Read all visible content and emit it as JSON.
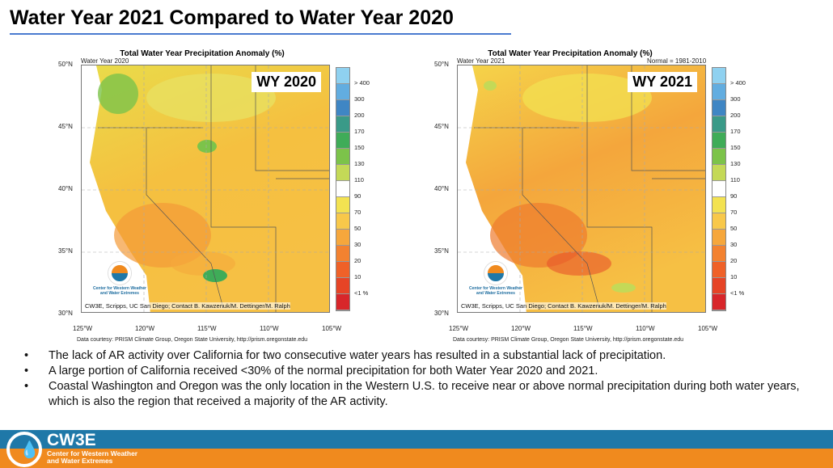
{
  "slide": {
    "title": "Water Year 2021 Compared to Water Year 2020"
  },
  "figure_title": "Total Water Year Precipitation Anomaly (%)",
  "lat_labels": [
    "50°N",
    "45°N",
    "40°N",
    "35°N",
    "30°N"
  ],
  "lon_labels": [
    "125°W",
    "120°W",
    "115°W",
    "110°W",
    "105°W"
  ],
  "legend": {
    "colors": [
      "#8fd1f0",
      "#62ade0",
      "#3f86c4",
      "#3a9a88",
      "#3fac58",
      "#7cc34a",
      "#c4d957",
      "#ffffff",
      "#f3e251",
      "#f8c84a",
      "#f6a73c",
      "#f38230",
      "#ef6128",
      "#e64426",
      "#d8262a"
    ],
    "labels": [
      "> 400",
      "300",
      "200",
      "170",
      "150",
      "130",
      "110",
      "90",
      "70",
      "50",
      "30",
      "20",
      "10",
      "<1 %"
    ]
  },
  "maps": [
    {
      "subtitle": "Water Year 2020",
      "normal": "",
      "badge": "WY 2020",
      "credit": "CW3E, Scripps, UC San Diego; Contact B. Kawzenuk/M. Dettinger/M. Ralph",
      "data_courtesy": "Data courtesy: PRISM Climate Group, Oregon State University, http://prism.oregonstate.edu"
    },
    {
      "subtitle": "Water Year 2021",
      "normal": "Normal = 1981-2010",
      "badge": "WY 2021",
      "credit": "CW3E, Scripps, UC San Diego; Contact B. Kawzenuk/M. Dettinger/M. Ralph",
      "data_courtesy": "Data courtesy: PRISM Climate Group, Oregon State University, http://prism.oregonstate.edu"
    }
  ],
  "logo_text": "Center for Western Weather and Water Extremes",
  "bullets": [
    "The lack of AR activity over California for two consecutive water years has resulted in a substantial lack of precipitation.",
    "A large portion of California received <30% of the normal precipitation for both Water Year 2020 and 2021.",
    "Coastal Washington and Oregon was the only location in the Western U.S. to receive near or above normal precipitation during both water years, which is also the region that received a majority of the AR activity."
  ],
  "footer": {
    "name": "CW3E",
    "subtitle_1": "Center for Western Weather",
    "subtitle_2": "and Water Extremes",
    "brand_blue": "#1f78a8",
    "brand_orange": "#f08a1e"
  }
}
